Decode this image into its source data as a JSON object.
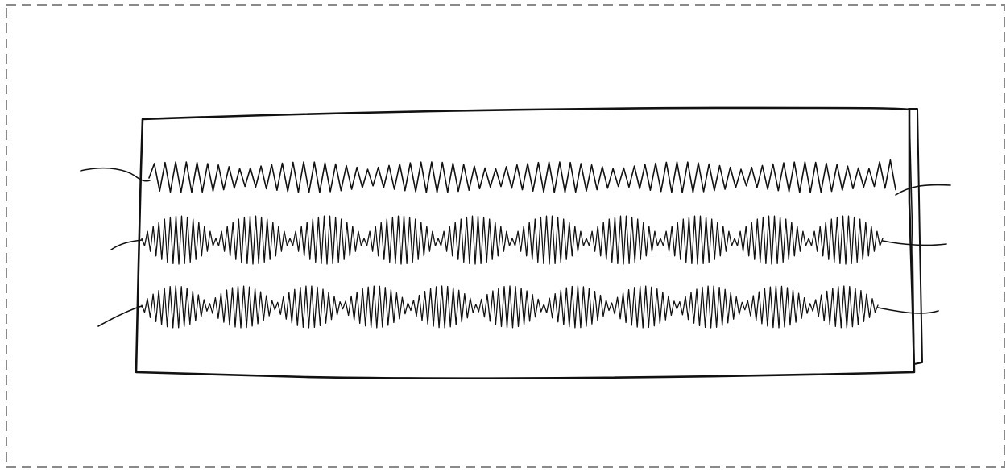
{
  "figure": {
    "subject": "fabric-swatch-with-stitch-rows",
    "colors": {
      "ink": "#111111",
      "frame": "#8a8a8a",
      "paper": "#ffffff"
    },
    "rows": [
      {
        "name": "zigzag-stitch-row",
        "pattern": "zigzag",
        "cycles": 70,
        "groups": 6
      },
      {
        "name": "satin-scallop-row-1",
        "pattern": "satin-scallop",
        "cycles": 130,
        "groups": 10
      },
      {
        "name": "satin-scallop-row-2",
        "pattern": "satin-scallop",
        "cycles": 130,
        "groups": 11
      }
    ]
  }
}
